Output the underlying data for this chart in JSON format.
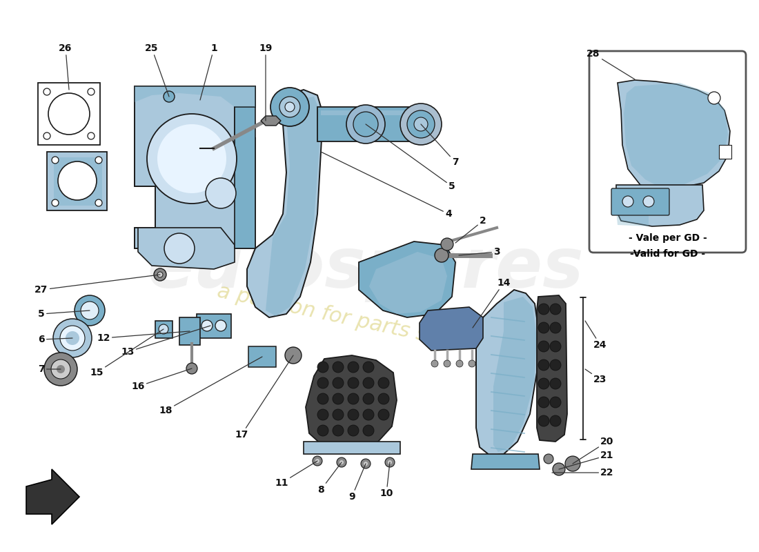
{
  "bg": "#ffffff",
  "lc": "#aac8dc",
  "dc": "#7aafc8",
  "sc": "#5090b0",
  "oc": "#1a1a1a",
  "rc": "#888888",
  "wm1": "#d0d0d0",
  "wm2": "#d4c860",
  "figsize": [
    11.0,
    8.0
  ],
  "dpi": 100,
  "inset_text1": "- Vale per GD -",
  "inset_text2": "-Valid for GD -"
}
